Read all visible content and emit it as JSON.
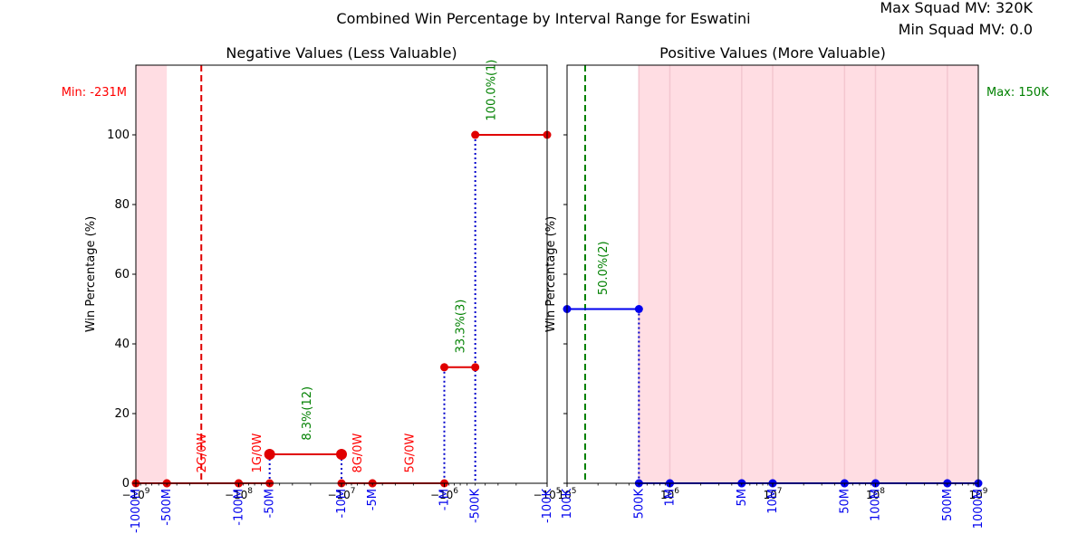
{
  "title": "Combined Win Percentage by Interval Range for Eswatini",
  "info": [
    "Max Squad MV: 320K",
    "Min Squad MV: 0.0"
  ],
  "colors": {
    "neg": "#e00000",
    "pos": "#0000ee",
    "label_green": "#008000",
    "label_red": "#ff0000",
    "shade": "#ffdde3"
  },
  "chart_data": [
    {
      "type": "line",
      "title": "Negative Values (Less Valuable)",
      "ylabel": "Win Percentage (%)",
      "xscale": "symlog",
      "xlim": [
        -1000000000,
        -100000
      ],
      "ylim": [
        0,
        120
      ],
      "yticks": [
        0,
        20,
        40,
        60,
        80,
        100
      ],
      "major_ticks": [
        {
          "value": -1000000000,
          "label": "−10^9"
        },
        {
          "value": -100000000,
          "label": "−10^8"
        },
        {
          "value": -10000000,
          "label": "−10^7"
        },
        {
          "value": -1000000,
          "label": "−10^6"
        },
        {
          "value": -100000,
          "label": "−10^5"
        }
      ],
      "interval_labels": [
        {
          "value": -1000000000,
          "label": "-1000M"
        },
        {
          "value": -500000000,
          "label": "-500M"
        },
        {
          "value": -100000000,
          "label": "-100M"
        },
        {
          "value": -50000000,
          "label": "-50M"
        },
        {
          "value": -10000000,
          "label": "-10M"
        },
        {
          "value": -5000000,
          "label": "-5M"
        },
        {
          "value": -1000000,
          "label": "-1M"
        },
        {
          "value": -500000,
          "label": "-500K"
        },
        {
          "value": -100000,
          "label": "-100K"
        }
      ],
      "segments": [
        {
          "x0": -1000000000,
          "x1": -500000000,
          "y": 0
        },
        {
          "x0": -500000000,
          "x1": -100000000,
          "y": 0
        },
        {
          "x0": -100000000,
          "x1": -50000000,
          "y": 0
        },
        {
          "x0": -50000000,
          "x1": -10000000,
          "y": 8.3,
          "big": true
        },
        {
          "x0": -10000000,
          "x1": -5000000,
          "y": 0
        },
        {
          "x0": -5000000,
          "x1": -1000000,
          "y": 0
        },
        {
          "x0": -1000000,
          "x1": -500000,
          "y": 33.3
        },
        {
          "x0": -500000,
          "x1": -100000,
          "y": 100
        }
      ],
      "dotted_lines": [
        {
          "x": -50000000,
          "y": 8.3
        },
        {
          "x": -10000000,
          "y": 8.3
        },
        {
          "x": -1000000,
          "y": 33.3
        },
        {
          "x": -500000,
          "y": 100
        }
      ],
      "shaded": [
        {
          "x0": -1000000000,
          "x1": -500000000
        }
      ],
      "ref_line": {
        "x": -231000000,
        "label": "Min: -231M"
      },
      "annotations": [
        {
          "x": -231000000,
          "y": 3,
          "text": "2G/0W",
          "color": "red"
        },
        {
          "x": -67000000,
          "y": 3,
          "text": "1G/0W",
          "color": "red"
        },
        {
          "x": -7100000,
          "y": 3,
          "text": "8G/0W",
          "color": "red"
        },
        {
          "x": -2200000,
          "y": 3,
          "text": "5G/0W",
          "color": "red"
        },
        {
          "x": -22000000,
          "y": 12.3,
          "text": "8.3%(12)",
          "color": "green"
        },
        {
          "x": -710000,
          "y": 37.3,
          "text": "33.3%(3)",
          "color": "green"
        },
        {
          "x": -355000,
          "y": 104,
          "text": "100.0%(1)",
          "color": "green"
        }
      ]
    },
    {
      "type": "line",
      "title": "Positive Values (More Valuable)",
      "ylabel": "Win Percentage (%)",
      "xscale": "log",
      "xlim": [
        100000,
        1000000000
      ],
      "ylim": [
        0,
        120
      ],
      "major_ticks": [
        {
          "value": 100000,
          "label": "10^5"
        },
        {
          "value": 1000000,
          "label": "10^6"
        },
        {
          "value": 10000000,
          "label": "10^7"
        },
        {
          "value": 100000000,
          "label": "10^8"
        },
        {
          "value": 1000000000,
          "label": "10^9"
        }
      ],
      "interval_labels": [
        {
          "value": 100000,
          "label": "100K"
        },
        {
          "value": 500000,
          "label": "500K"
        },
        {
          "value": 1000000,
          "label": "1M"
        },
        {
          "value": 5000000,
          "label": "5M"
        },
        {
          "value": 10000000,
          "label": "10M"
        },
        {
          "value": 50000000,
          "label": "50M"
        },
        {
          "value": 100000000,
          "label": "100M"
        },
        {
          "value": 500000000,
          "label": "500M"
        },
        {
          "value": 1000000000,
          "label": "1000M"
        }
      ],
      "segments": [
        {
          "x0": 100000,
          "x1": 500000,
          "y": 50
        },
        {
          "x0": 500000,
          "x1": 1000000,
          "y": 0
        },
        {
          "x0": 1000000,
          "x1": 5000000,
          "y": 0
        },
        {
          "x0": 5000000,
          "x1": 10000000,
          "y": 0
        },
        {
          "x0": 10000000,
          "x1": 50000000,
          "y": 0
        },
        {
          "x0": 50000000,
          "x1": 100000000,
          "y": 0
        },
        {
          "x0": 100000000,
          "x1": 500000000,
          "y": 0
        },
        {
          "x0": 500000000,
          "x1": 1000000000,
          "y": 0
        }
      ],
      "dotted_lines": [
        {
          "x": 500000,
          "y": 50
        }
      ],
      "shaded": [
        {
          "x0": 500000,
          "x1": 1000000
        },
        {
          "x0": 1000000,
          "x1": 5000000
        },
        {
          "x0": 5000000,
          "x1": 10000000
        },
        {
          "x0": 10000000,
          "x1": 50000000
        },
        {
          "x0": 50000000,
          "x1": 100000000
        },
        {
          "x0": 100000000,
          "x1": 500000000
        },
        {
          "x0": 500000000,
          "x1": 1000000000
        }
      ],
      "ref_line": {
        "x": 150000,
        "label": "Max: 150K"
      },
      "annotations": [
        {
          "x": 220000,
          "y": 54,
          "text": "50.0%(2)",
          "color": "green"
        }
      ]
    }
  ]
}
